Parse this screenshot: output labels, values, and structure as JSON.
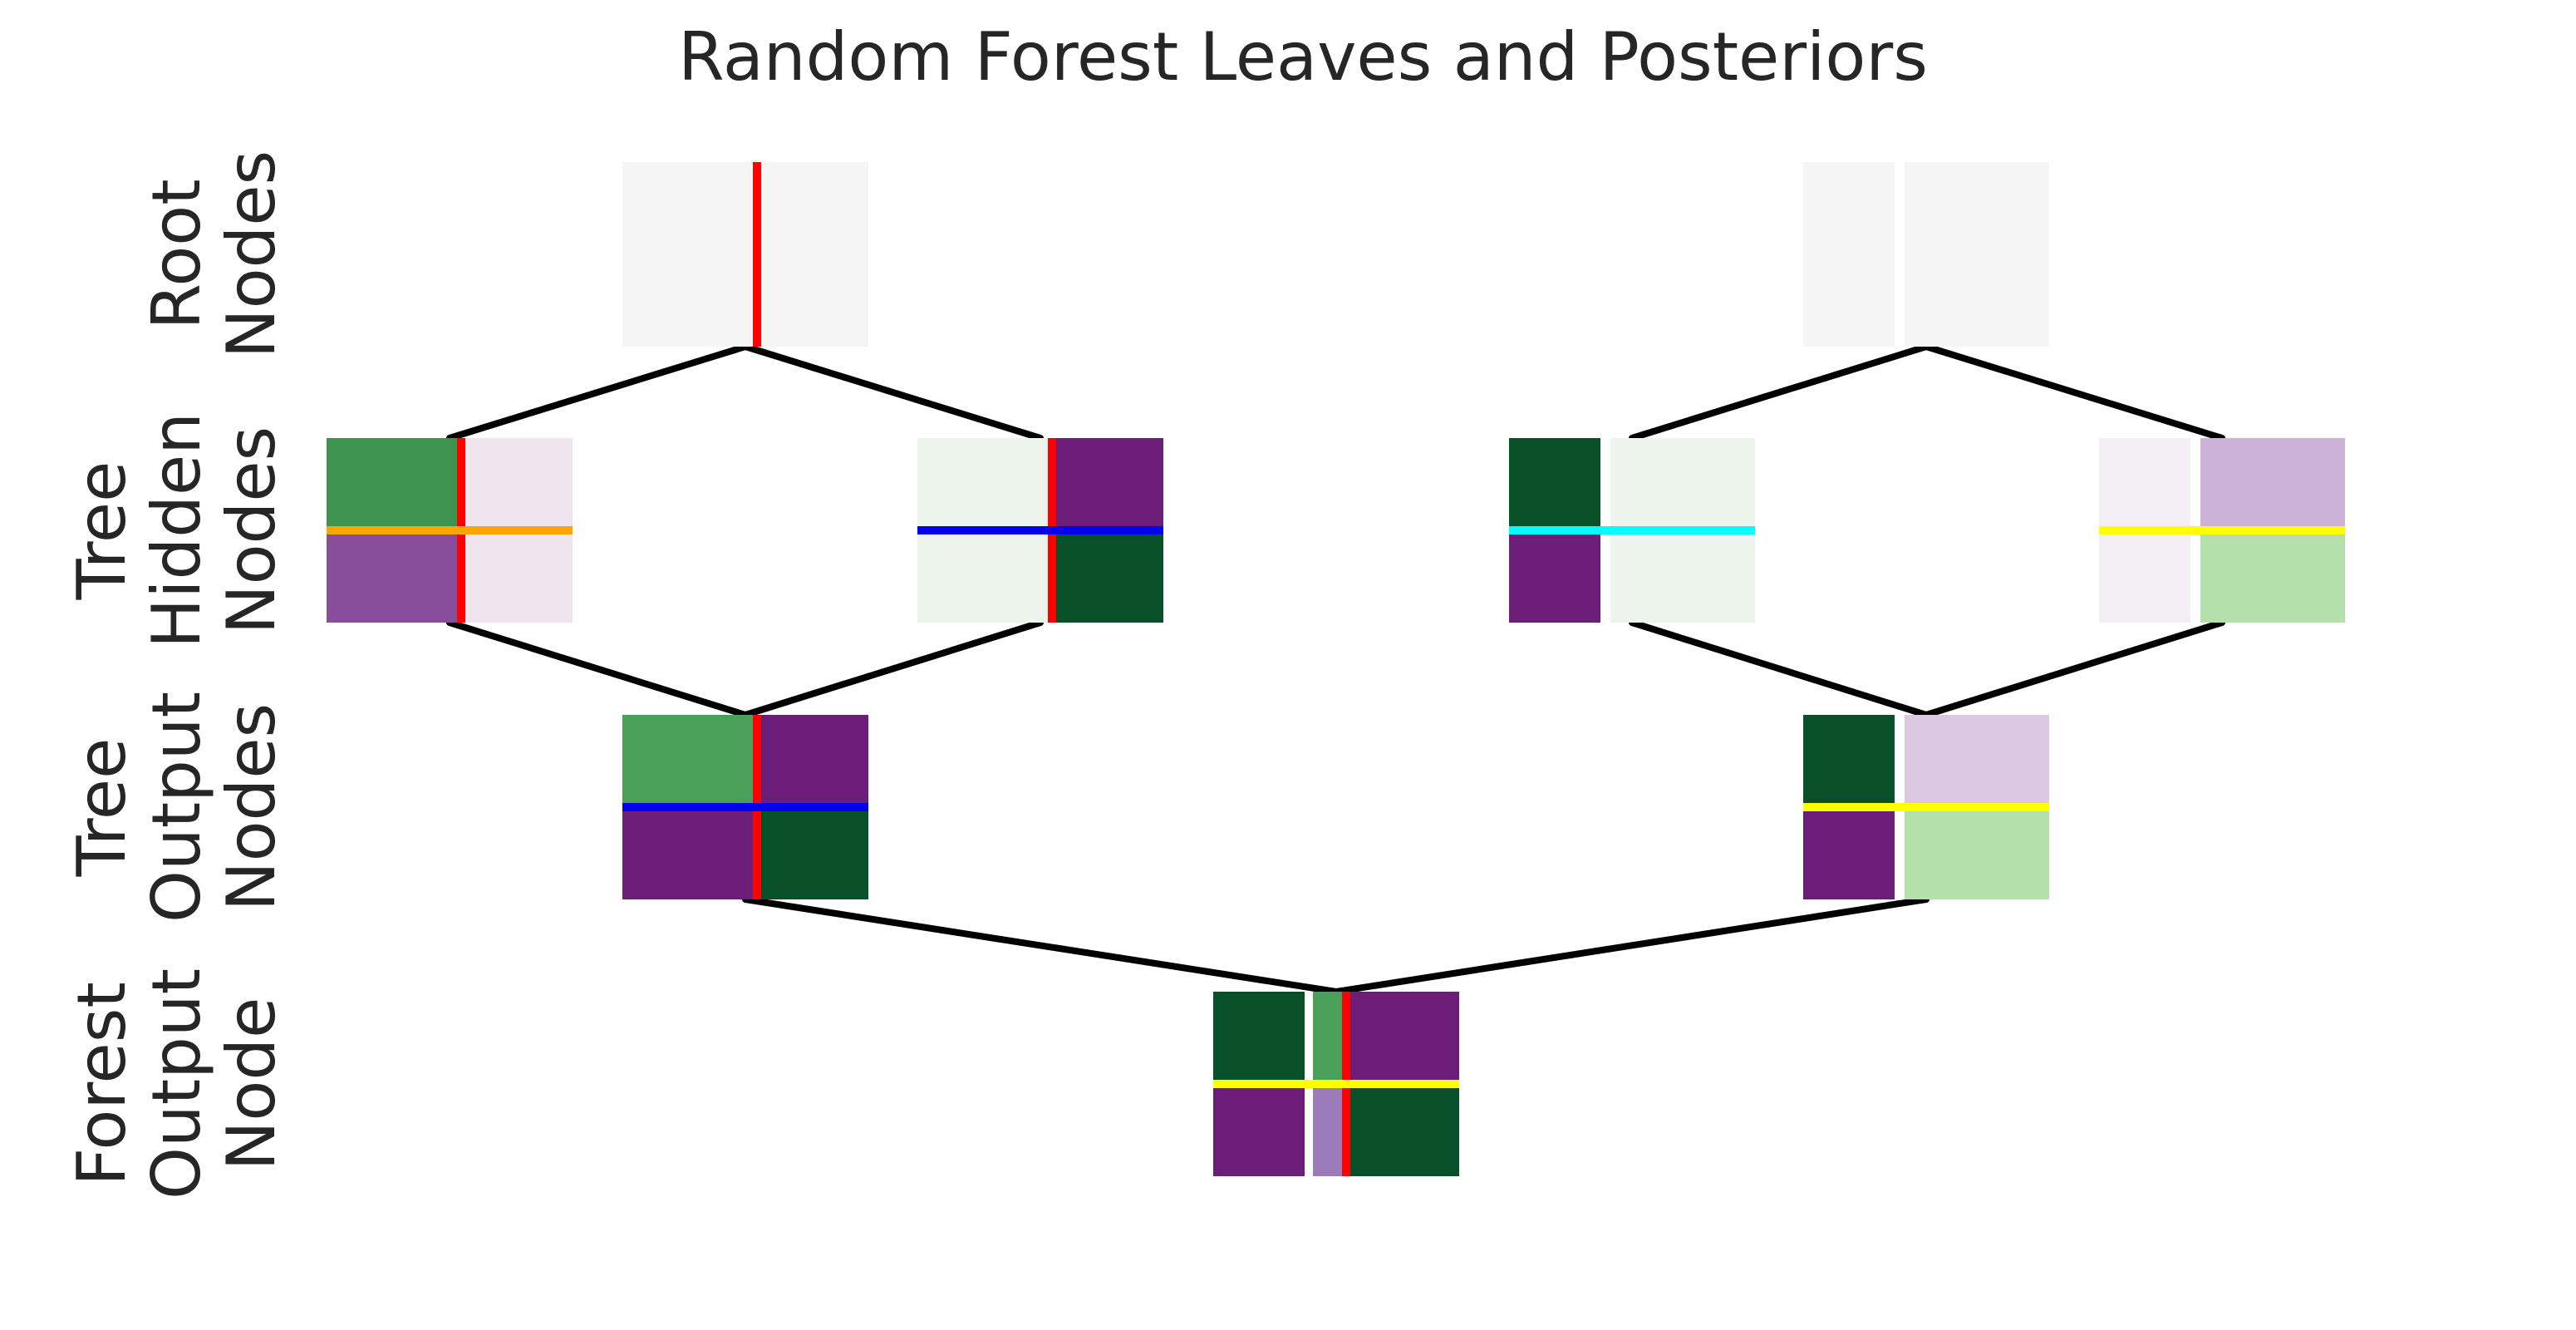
{
  "title": "Random Forest Leaves and Posteriors",
  "row_labels": [
    {
      "lines": [
        "Root",
        "Nodes"
      ]
    },
    {
      "lines": [
        "Tree",
        "Hidden",
        "Nodes"
      ]
    },
    {
      "lines": [
        "Tree",
        "Output",
        "Nodes"
      ]
    },
    {
      "lines": [
        "Forest",
        "Output",
        "Node"
      ]
    }
  ],
  "colors": {
    "edge": "#000000",
    "split_red": "#ff0000",
    "split_orange": "#ffa500",
    "split_blue": "#0000ee",
    "split_cyan": "#00ffff",
    "split_yellow": "#ffff00",
    "empty_region": "#f5f5f5"
  },
  "nodes": [
    {
      "id": "tree1-root",
      "level": 0,
      "tree": 1,
      "v_split": "red",
      "h_split": null,
      "regions": [
        "#f5f5f5",
        "#f5f5f5",
        "#f5f5f5",
        "#f5f5f5"
      ]
    },
    {
      "id": "tree2-root",
      "level": 0,
      "tree": 2,
      "v_split": "white",
      "h_split": null,
      "regions": [
        "#f5f5f5",
        "#f5f5f5",
        "#f5f5f5",
        "#f5f5f5"
      ]
    },
    {
      "id": "tree1-hidden-left",
      "level": 1,
      "tree": 1,
      "v_split": "red",
      "h_split": "orange",
      "regions": [
        "#3d944e",
        "#f0e4ef",
        "#864e9b",
        "#f0e4ef"
      ]
    },
    {
      "id": "tree1-hidden-right",
      "level": 1,
      "tree": 1,
      "v_split": "red",
      "h_split": "blue",
      "regions": [
        "#edf4ec",
        "#6a1e77",
        "#edf4ec",
        "#085128"
      ]
    },
    {
      "id": "tree2-hidden-left",
      "level": 1,
      "tree": 2,
      "v_split": "white",
      "h_split": "cyan",
      "regions": [
        "#085128",
        "#edf4ec",
        "#6a1e77",
        "#edf4ec"
      ]
    },
    {
      "id": "tree2-hidden-right",
      "level": 1,
      "tree": 2,
      "v_split": "white",
      "h_split": "yellow",
      "regions": [
        "#f3edf4",
        "#cbb2d6",
        "#f3edf4",
        "#b3e0ab"
      ]
    },
    {
      "id": "tree1-output",
      "level": 2,
      "tree": 1,
      "v_split": "red",
      "h_split": "blue",
      "regions": [
        "#4aa058",
        "#6a1e77",
        "#6a1e77",
        "#085128"
      ]
    },
    {
      "id": "tree2-output",
      "level": 2,
      "tree": 2,
      "v_split": "white",
      "h_split": "yellow",
      "regions": [
        "#085128",
        "#ddc8e2",
        "#6a1e77",
        "#b3e0ab"
      ]
    },
    {
      "id": "forest-output",
      "level": 3,
      "tree": 0,
      "v_split": "composite",
      "h_split": "yellow",
      "regions": [
        "#085128",
        "#4aa058",
        "#6a1e77",
        "#6a1e77",
        "#9c7bbb",
        "#085128"
      ]
    }
  ]
}
